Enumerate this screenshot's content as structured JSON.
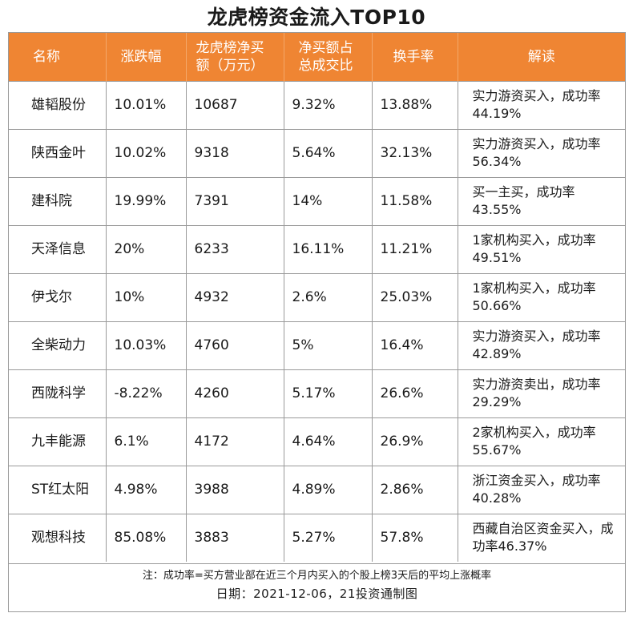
{
  "title": "龙虎榜资金流入TOP10",
  "columns": [
    "名称",
    "涨跌幅",
    "龙虎榜净买额（万元）",
    "净买额占总成交比",
    "换手率",
    "解读"
  ],
  "column_lines": [
    [
      "名称"
    ],
    [
      "涨跌幅"
    ],
    [
      "龙虎榜净买",
      "额（万元）"
    ],
    [
      "净买额占",
      "总成交比"
    ],
    [
      "换手率"
    ],
    [
      "解读"
    ]
  ],
  "rows": [
    [
      "雄韬股份",
      "10.01%",
      "10687",
      "9.32%",
      "13.88%",
      "实力游资买入，成功率44.19%"
    ],
    [
      "陕西金叶",
      "10.02%",
      "9318",
      "5.64%",
      "32.13%",
      "实力游资买入，成功率56.34%"
    ],
    [
      "建科院",
      "19.99%",
      "7391",
      "14%",
      "11.58%",
      "买一主买，成功率43.55%"
    ],
    [
      "天泽信息",
      "20%",
      "6233",
      "16.11%",
      "11.21%",
      "1家机构买入，成功率49.51%"
    ],
    [
      "伊戈尔",
      "10%",
      "4932",
      "2.6%",
      "25.03%",
      "1家机构买入，成功率50.66%"
    ],
    [
      "全柴动力",
      "10.03%",
      "4760",
      "5%",
      "16.4%",
      "实力游资买入，成功率42.89%"
    ],
    [
      "西陇科学",
      "-8.22%",
      "4260",
      "5.17%",
      "26.6%",
      "实力游资卖出，成功率29.29%"
    ],
    [
      "九丰能源",
      "6.1%",
      "4172",
      "4.64%",
      "26.9%",
      "2家机构买入，成功率55.67%"
    ],
    [
      "ST红太阳",
      "4.98%",
      "3988",
      "4.89%",
      "2.86%",
      "浙江资金买入，成功率40.28%"
    ],
    [
      "观想科技",
      "85.08%",
      "3883",
      "5.27%",
      "57.8%",
      "西藏自治区资金买入，成功率46.37%"
    ]
  ],
  "note": "注：成功率=买方营业部在近三个月内买入的个股上榜3天后的平均上涨概率",
  "footer": "日期：2021-12-06，21投资通制图",
  "colors": {
    "header_bg": "#ef8533",
    "header_text": "#ffffff",
    "border": "#9a9a9a"
  }
}
